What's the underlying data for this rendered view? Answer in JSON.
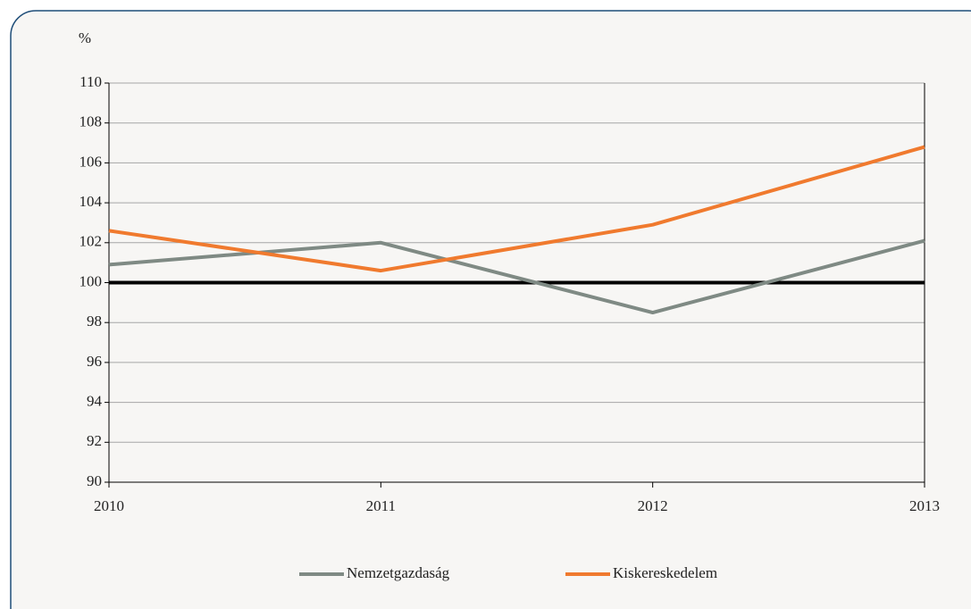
{
  "chart_data": {
    "type": "line",
    "unit_label": "%",
    "categories": [
      "2010",
      "2011",
      "2012",
      "2013"
    ],
    "series": [
      {
        "name": "Nemzetgazdaság",
        "color": "#7f8a84",
        "values": [
          100.9,
          102.0,
          98.5,
          102.1
        ]
      },
      {
        "name": "Kiskereskedelem",
        "color": "#f07a2e",
        "values": [
          102.6,
          100.6,
          102.9,
          106.8
        ]
      }
    ],
    "ylim": [
      90,
      110
    ],
    "yticks": [
      90,
      92,
      94,
      96,
      98,
      100,
      102,
      104,
      106,
      108,
      110
    ],
    "reference_line": 100,
    "grid": true,
    "legend": "bottom"
  }
}
